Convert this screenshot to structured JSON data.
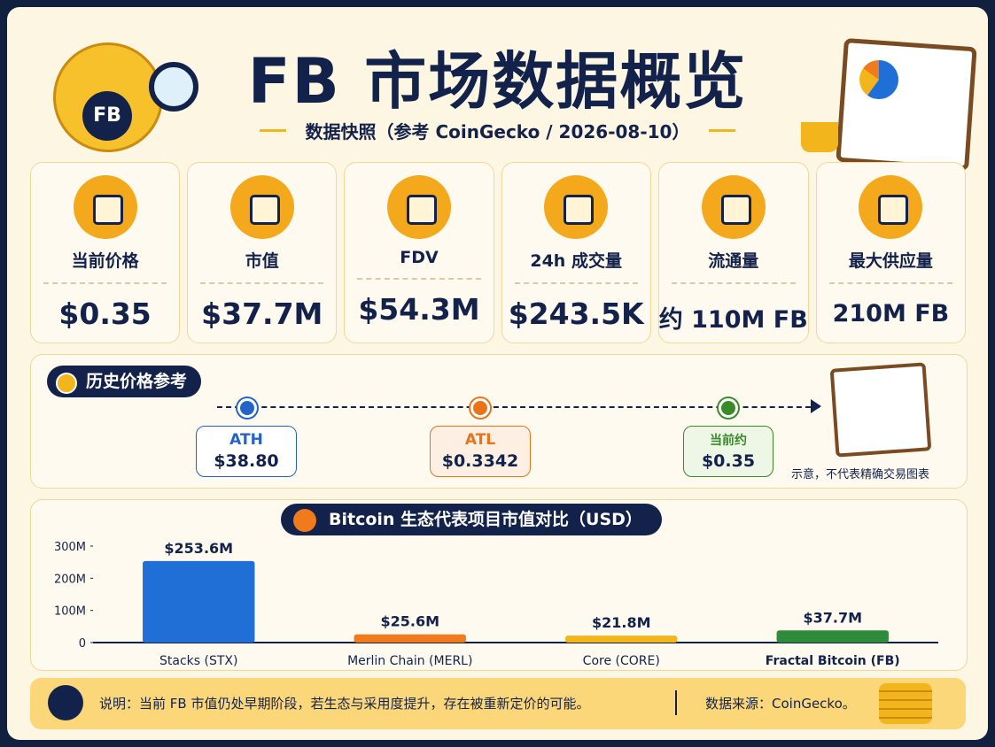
{
  "header": {
    "title": "FB 市场数据概览",
    "subtitle": "数据快照（参考 CoinGecko / 2026-08-10）"
  },
  "cards": [
    {
      "label": "当前价格",
      "value": "$0.35"
    },
    {
      "label": "市值",
      "value": "$37.7M"
    },
    {
      "label": "FDV",
      "value": "$54.3M"
    },
    {
      "label": "24h 成交量",
      "value": "$243.5K"
    },
    {
      "label": "流通量",
      "value": "约 110M FB"
    },
    {
      "label": "最大供应量",
      "value": "210M FB"
    }
  ],
  "history": {
    "title": "历史价格参考",
    "points": [
      {
        "label": "ATH",
        "value": "$38.80"
      },
      {
        "label": "ATL",
        "value": "$0.3342"
      },
      {
        "label": "当前约",
        "value": "$0.35"
      }
    ],
    "note": "示意，不代表精确交易图表"
  },
  "chart_data": {
    "type": "bar",
    "title": "Bitcoin 生态代表项目市值对比（USD）",
    "categories": [
      "Stacks (STX)",
      "Merlin Chain (MERL)",
      "Core (CORE)",
      "Fractal Bitcoin (FB)"
    ],
    "values": [
      253600000,
      25600000,
      21800000,
      37700000
    ],
    "value_labels": [
      "$253.6M",
      "$25.6M",
      "$21.8M",
      "$37.7M"
    ],
    "colors": [
      "#1f6fd6",
      "#f07a1c",
      "#f2b51c",
      "#2e8b3a"
    ],
    "ylim": [
      0,
      300000000
    ],
    "yticks": [
      0,
      {
        "value": 100000000,
        "label": "100M"
      },
      {
        "value": 200000000,
        "label": "200M"
      },
      {
        "value": 300000000,
        "label": "300M"
      }
    ],
    "grid": false
  },
  "footer": {
    "note": "说明：当前 FB 市值仍处早期阶段，若生态与采用度提升，存在被重新定价的可能。",
    "source": "数据来源：CoinGecko。"
  }
}
